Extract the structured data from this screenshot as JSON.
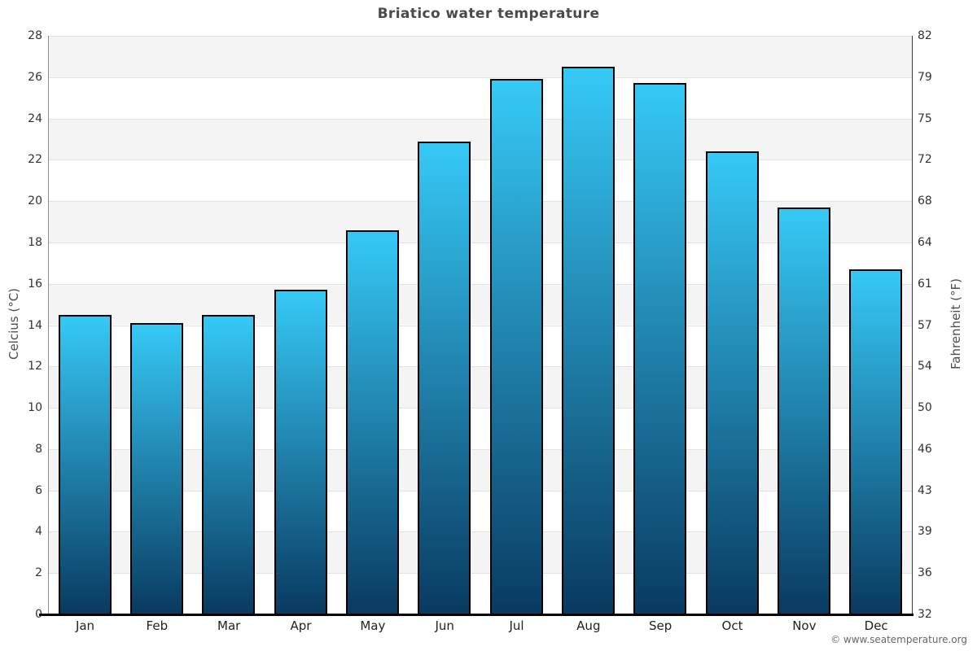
{
  "page": {
    "footer_copyright": "© www.seatemperature.org"
  },
  "chart_data": {
    "type": "bar",
    "title": "Briatico water temperature",
    "categories": [
      "Jan",
      "Feb",
      "Mar",
      "Apr",
      "May",
      "Jun",
      "Jul",
      "Aug",
      "Sep",
      "Oct",
      "Nov",
      "Dec"
    ],
    "values": [
      14.5,
      14.1,
      14.5,
      15.7,
      18.6,
      22.9,
      25.9,
      26.5,
      25.7,
      22.4,
      19.7,
      16.7
    ],
    "unit": "°C",
    "ylabel_left": "Celcius (°C)",
    "ylabel_right": "Fahrenheit (°F)",
    "ylim": [
      0,
      28
    ],
    "celsius_ticks": [
      0,
      2,
      4,
      6,
      8,
      10,
      12,
      14,
      16,
      18,
      20,
      22,
      24,
      26,
      28
    ],
    "fahrenheit_tick_labels": [
      "32",
      "36",
      "39",
      "43",
      "46",
      "50",
      "54",
      "57",
      "61",
      "64",
      "68",
      "72",
      "75",
      "79",
      "82"
    ],
    "legend": "none",
    "grid": "alternating horizontal shaded bands every 2 °C with light gridlines",
    "colors": {
      "bar_top": "#36c9f6",
      "bar_bottom": "#093a60",
      "bar_border": "#000000",
      "band_shaded": "#f4f4f4",
      "band_plain": "#ffffff",
      "gridline": "#e2e2e2",
      "axis_left": "#8a8a8a",
      "axis_right": "#3a3a3a",
      "axis_bottom": "#000000",
      "title_text": "#4a4a4a",
      "tick_text": "#333333",
      "footer_text": "#666666"
    }
  }
}
